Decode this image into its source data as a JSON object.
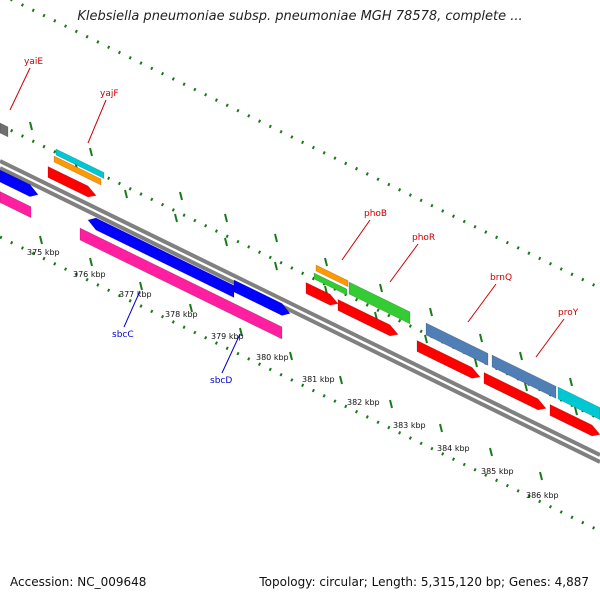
{
  "title": "Klebsiella pneumoniae subsp. pneumoniae MGH 78578, complete ...",
  "footer": {
    "accession": "Accession: NC_009648",
    "summary": "Topology: circular; Length: 5,315,120 bp; Genes: 4,887"
  },
  "colors": {
    "backbone": "#808080",
    "tick": "#1a7a1a",
    "gene_label": "#cc0000",
    "feature_label": "#0000cc",
    "cds": "#ff0000",
    "gene_blue": "#0000ff",
    "magenta": "#ff1fa0",
    "steelblue": "#4f7fb5",
    "green": "#33cc33",
    "orange": "#ff9900",
    "cyan": "#00c8d2",
    "gray": "#707070"
  },
  "kbp_labels": [
    "375 kbp",
    "376 kbp",
    "377 kbp",
    "378 kbp",
    "379 kbp",
    "380 kbp",
    "381 kbp",
    "382 kbp",
    "383 kbp",
    "384 kbp",
    "385 kbp",
    "386 kbp"
  ],
  "gene_labels": [
    "yaiE",
    "yajF",
    "phoB",
    "phoR",
    "brnQ",
    "proY"
  ],
  "feature_labels": [
    "sbcC",
    "sbcD"
  ]
}
